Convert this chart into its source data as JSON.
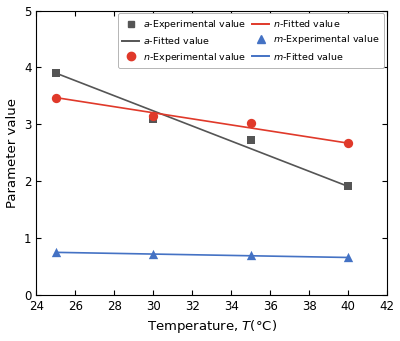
{
  "temperatures_exp": [
    25,
    30,
    35,
    40
  ],
  "a_exp": [
    3.9,
    3.1,
    2.72,
    1.91
  ],
  "n_exp": [
    3.47,
    3.15,
    3.03,
    2.67
  ],
  "m_exp": [
    0.75,
    0.72,
    0.7,
    0.66
  ],
  "fit_x": [
    25,
    40
  ],
  "a_fit": [
    3.9,
    1.91
  ],
  "n_fit": [
    3.47,
    2.67
  ],
  "m_fit": [
    0.75,
    0.66
  ],
  "a_color": "#555555",
  "n_color": "#e0392a",
  "m_color": "#4472c4",
  "xlabel": "Temperature, $T$(°C)",
  "ylabel": "Parameter value",
  "xlim": [
    24,
    42
  ],
  "ylim": [
    0,
    5
  ],
  "xticks": [
    24,
    26,
    28,
    30,
    32,
    34,
    36,
    38,
    40,
    42
  ],
  "yticks": [
    0,
    1,
    2,
    3,
    4,
    5
  ],
  "legend_exp_labels": [
    "$a$-Experimental value",
    "$n$-Experimental value",
    "$m$-Experimental value"
  ],
  "legend_fit_labels": [
    "$a$-Fitted value",
    "$n$-Fitted value",
    "$m$-Fitted value"
  ],
  "figsize": [
    4.0,
    3.41
  ],
  "dpi": 100
}
